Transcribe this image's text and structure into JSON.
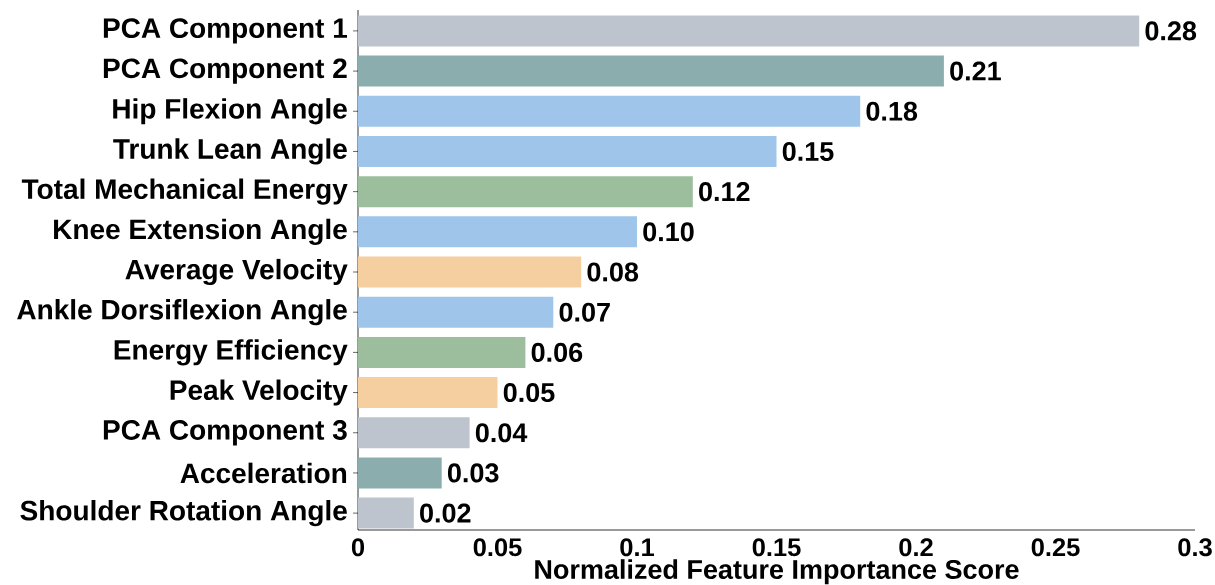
{
  "chart_data": {
    "type": "bar",
    "orientation": "horizontal",
    "xlabel": "Normalized Feature Importance Score",
    "categories": [
      "PCA Component 1",
      "PCA Component 2",
      "Hip Flexion Angle",
      "Trunk Lean Angle",
      "Total Mechanical Energy",
      "Knee Extension Angle",
      "Average Velocity",
      "Ankle Dorsiflexion Angle",
      "Energy Efficiency",
      "Peak Velocity",
      "PCA Component 3",
      "Acceleration",
      "Shoulder Rotation Angle"
    ],
    "values": [
      0.28,
      0.21,
      0.18,
      0.15,
      0.12,
      0.1,
      0.08,
      0.07,
      0.06,
      0.05,
      0.04,
      0.03,
      0.02
    ],
    "value_labels": [
      "0.28",
      "0.21",
      "0.18",
      "0.15",
      "0.12",
      "0.10",
      "0.08",
      "0.07",
      "0.06",
      "0.05",
      "0.04",
      "0.03",
      "0.02"
    ],
    "colors": [
      "#bec4cd",
      "#8badad",
      "#9fc6ea",
      "#9fc6ea",
      "#9dbe9d",
      "#9fc6ea",
      "#f6cfa0",
      "#9fc6ea",
      "#9dbe9d",
      "#f6cfa0",
      "#bec4cd",
      "#8badad",
      "#bec4cd"
    ],
    "xlim": [
      0,
      0.3
    ],
    "xticks": [
      0,
      0.05,
      0.1,
      0.15,
      0.2,
      0.25,
      0.3
    ]
  }
}
